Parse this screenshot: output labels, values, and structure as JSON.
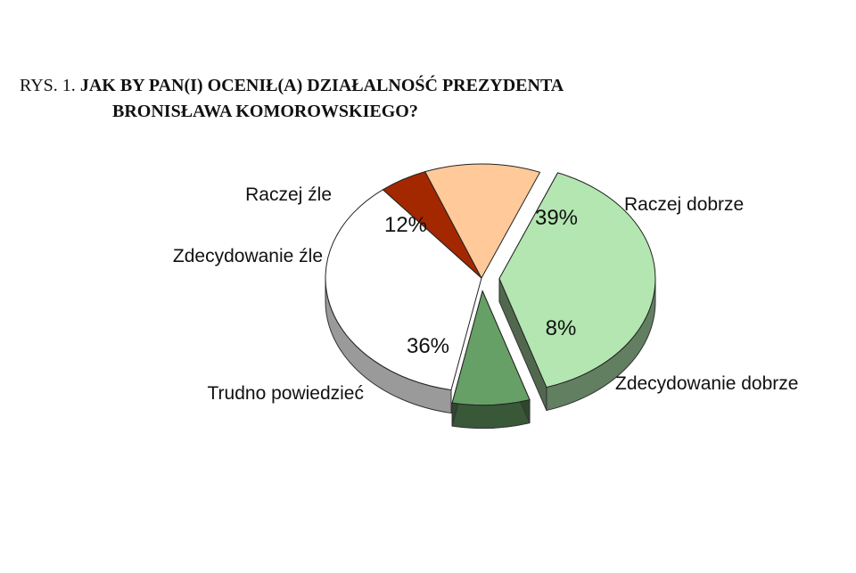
{
  "figure": {
    "prefix": "RYS. 1.",
    "title_line1": "JAK BY PAN(I) OCENIŁ(A) DZIAŁALNOŚĆ PREZYDENTA",
    "title_line2": "BRONISŁAWA  KOMOROWSKIEGO?"
  },
  "chart_data": {
    "type": "pie",
    "style": "3d-exploded",
    "slices": [
      {
        "label": "Raczej dobrze",
        "value": 39,
        "value_label": "39%",
        "color": "#b3e6b0",
        "exploded": true
      },
      {
        "label": "Zdecydowanie dobrze",
        "value": 8,
        "value_label": "8%",
        "color": "#66a066",
        "exploded": true
      },
      {
        "label": "Trudno powiedzieć",
        "value": 36,
        "value_label": "36%",
        "color": "#ffffff",
        "exploded": false
      },
      {
        "label": "Zdecydowanie źle",
        "value": 5,
        "value_label": "5%",
        "color": "#a32800",
        "exploded": false
      },
      {
        "label": "Raczej źle",
        "value": 12,
        "value_label": "12%",
        "color": "#ffc999",
        "exploded": false
      }
    ]
  }
}
